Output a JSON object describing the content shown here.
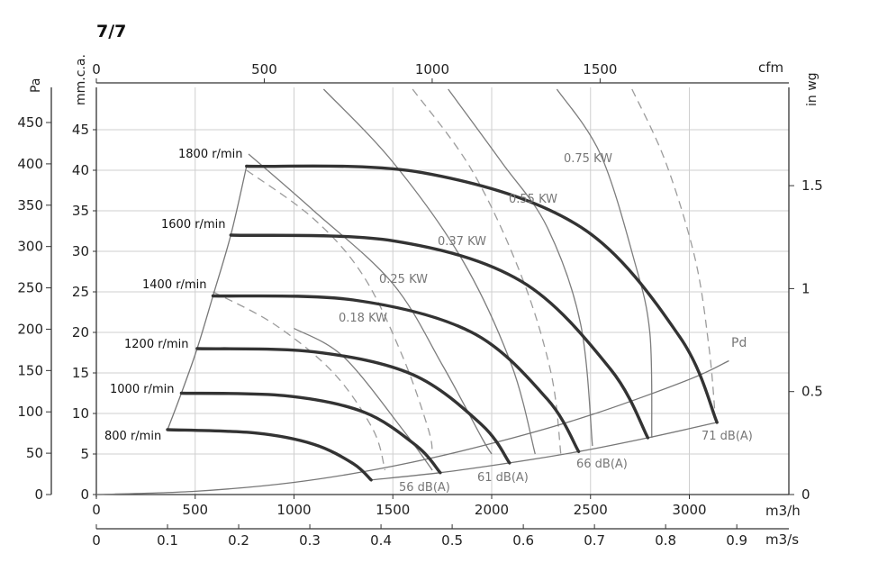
{
  "page_title": "7/7",
  "chart_data": {
    "type": "line",
    "title": "7/7",
    "x_axes": {
      "primary": {
        "label": "m3/h",
        "range": [
          0,
          3300
        ],
        "ticks": [
          0,
          500,
          1000,
          1500,
          2000,
          2500,
          3000
        ]
      },
      "secondary": {
        "label": "m3/s",
        "range": [
          0,
          0.9167
        ],
        "ticks": [
          0,
          0.1,
          0.2,
          0.3,
          0.4,
          0.5,
          0.6,
          0.7,
          0.8,
          0.9
        ]
      },
      "top": {
        "label": "cfm",
        "range": [
          0,
          1942
        ],
        "ticks": [
          0,
          500,
          1000,
          1500
        ]
      }
    },
    "y_axes": {
      "primary": {
        "label": "mm.c.a.",
        "range": [
          0,
          50
        ],
        "ticks": [
          0,
          5,
          10,
          15,
          20,
          25,
          30,
          35,
          40,
          45
        ]
      },
      "left_outer": {
        "label": "Pa",
        "range": [
          0,
          490
        ],
        "ticks": [
          0,
          50,
          100,
          150,
          200,
          250,
          300,
          350,
          400,
          450
        ]
      },
      "right": {
        "label": "in wg",
        "range": [
          0,
          1.97
        ],
        "ticks": [
          0,
          0.5,
          1,
          1.5
        ]
      }
    },
    "grid": true,
    "speed_curves": [
      {
        "name": "800 r/min",
        "points": [
          [
            360,
            8
          ],
          [
            800,
            7.6
          ],
          [
            1100,
            6.2
          ],
          [
            1300,
            3.8
          ],
          [
            1390,
            1.8
          ]
        ]
      },
      {
        "name": "1000 r/min",
        "points": [
          [
            430,
            12.5
          ],
          [
            950,
            12.2
          ],
          [
            1350,
            10.2
          ],
          [
            1620,
            6
          ],
          [
            1740,
            2.7
          ]
        ]
      },
      {
        "name": "1200 r/min",
        "points": [
          [
            510,
            18
          ],
          [
            1100,
            17.6
          ],
          [
            1600,
            14.8
          ],
          [
            1950,
            8.6
          ],
          [
            2090,
            3.9
          ]
        ]
      },
      {
        "name": "1400 r/min",
        "points": [
          [
            590,
            24.5
          ],
          [
            1300,
            24
          ],
          [
            1900,
            20
          ],
          [
            2280,
            11.8
          ],
          [
            2440,
            5.3
          ]
        ]
      },
      {
        "name": "1600 r/min",
        "points": [
          [
            680,
            32
          ],
          [
            1500,
            31.3
          ],
          [
            2150,
            26.3
          ],
          [
            2600,
            15.5
          ],
          [
            2790,
            7
          ]
        ]
      },
      {
        "name": "1800 r/min",
        "points": [
          [
            760,
            40.5
          ],
          [
            1650,
            39.7
          ],
          [
            2450,
            33
          ],
          [
            2950,
            19.5
          ],
          [
            3140,
            8.9
          ]
        ]
      }
    ],
    "power_curves": [
      {
        "name": "0.18 KW",
        "dashed": false,
        "points": [
          [
            1000,
            20.5
          ],
          [
            1250,
            17
          ],
          [
            1550,
            8
          ],
          [
            1700,
            3
          ]
        ]
      },
      {
        "name": "0.25 KW",
        "dashed": false,
        "points": [
          [
            770,
            42
          ],
          [
            1100,
            35
          ],
          [
            1500,
            26
          ],
          [
            1750,
            16
          ],
          [
            1950,
            7
          ],
          [
            2000,
            5
          ]
        ]
      },
      {
        "name": "0.37 KW",
        "dashed": false,
        "points": [
          [
            1150,
            50
          ],
          [
            1500,
            41
          ],
          [
            1850,
            29
          ],
          [
            2100,
            16
          ],
          [
            2220,
            5
          ]
        ]
      },
      {
        "name": "0.55 KW",
        "dashed": false,
        "points": [
          [
            1780,
            50
          ],
          [
            2050,
            41
          ],
          [
            2280,
            33
          ],
          [
            2450,
            21
          ],
          [
            2510,
            6
          ]
        ]
      },
      {
        "name": "0.75 KW",
        "dashed": false,
        "points": [
          [
            2330,
            50
          ],
          [
            2550,
            42
          ],
          [
            2720,
            29
          ],
          [
            2800,
            20
          ],
          [
            2810,
            7
          ]
        ]
      },
      {
        "name": "",
        "dashed": true,
        "points": [
          [
            760,
            40
          ],
          [
            1100,
            34
          ],
          [
            1350,
            27
          ],
          [
            1550,
            17
          ],
          [
            1680,
            8
          ],
          [
            1700,
            5
          ]
        ]
      },
      {
        "name": "",
        "dashed": true,
        "points": [
          [
            590,
            25
          ],
          [
            900,
            21
          ],
          [
            1200,
            15
          ],
          [
            1400,
            8
          ],
          [
            1460,
            3
          ]
        ]
      },
      {
        "name": "",
        "dashed": true,
        "points": [
          [
            1600,
            50
          ],
          [
            1900,
            40
          ],
          [
            2150,
            27
          ],
          [
            2300,
            15
          ],
          [
            2350,
            5
          ]
        ]
      },
      {
        "name": "",
        "dashed": true,
        "points": [
          [
            2710,
            50
          ],
          [
            2880,
            41
          ],
          [
            3030,
            29
          ],
          [
            3100,
            18
          ],
          [
            3130,
            10
          ]
        ]
      }
    ],
    "limit_curve": {
      "points": [
        [
          360,
          8
        ],
        [
          430,
          12.5
        ],
        [
          510,
          18
        ],
        [
          590,
          24.5
        ],
        [
          680,
          32
        ],
        [
          760,
          40.5
        ]
      ]
    },
    "dynamic_pressure": {
      "name": "Pd",
      "points": [
        [
          0,
          0
        ],
        [
          500,
          0.4
        ],
        [
          1000,
          1.5
        ],
        [
          1500,
          3.5
        ],
        [
          2000,
          6.3
        ],
        [
          2500,
          9.8
        ],
        [
          3000,
          14.2
        ],
        [
          3200,
          16.5
        ]
      ]
    },
    "noise_curve": {
      "points": [
        [
          1390,
          1.8
        ],
        [
          1740,
          2.7
        ],
        [
          2090,
          3.9
        ],
        [
          2440,
          5.3
        ],
        [
          2790,
          7
        ],
        [
          3140,
          8.9
        ]
      ]
    },
    "labels": {
      "speeds": [
        "800 r/min",
        "1000 r/min",
        "1200 r/min",
        "1400 r/min",
        "1600 r/min",
        "1800 r/min"
      ],
      "powers": [
        "0.18 KW",
        "0.25 KW",
        "0.37 KW",
        "0.55 KW",
        "0.75 KW"
      ],
      "noise": [
        "56 dB(A)",
        "61 dB(A)",
        "66 dB(A)",
        "71 dB(A)"
      ],
      "pd": "Pd"
    }
  }
}
